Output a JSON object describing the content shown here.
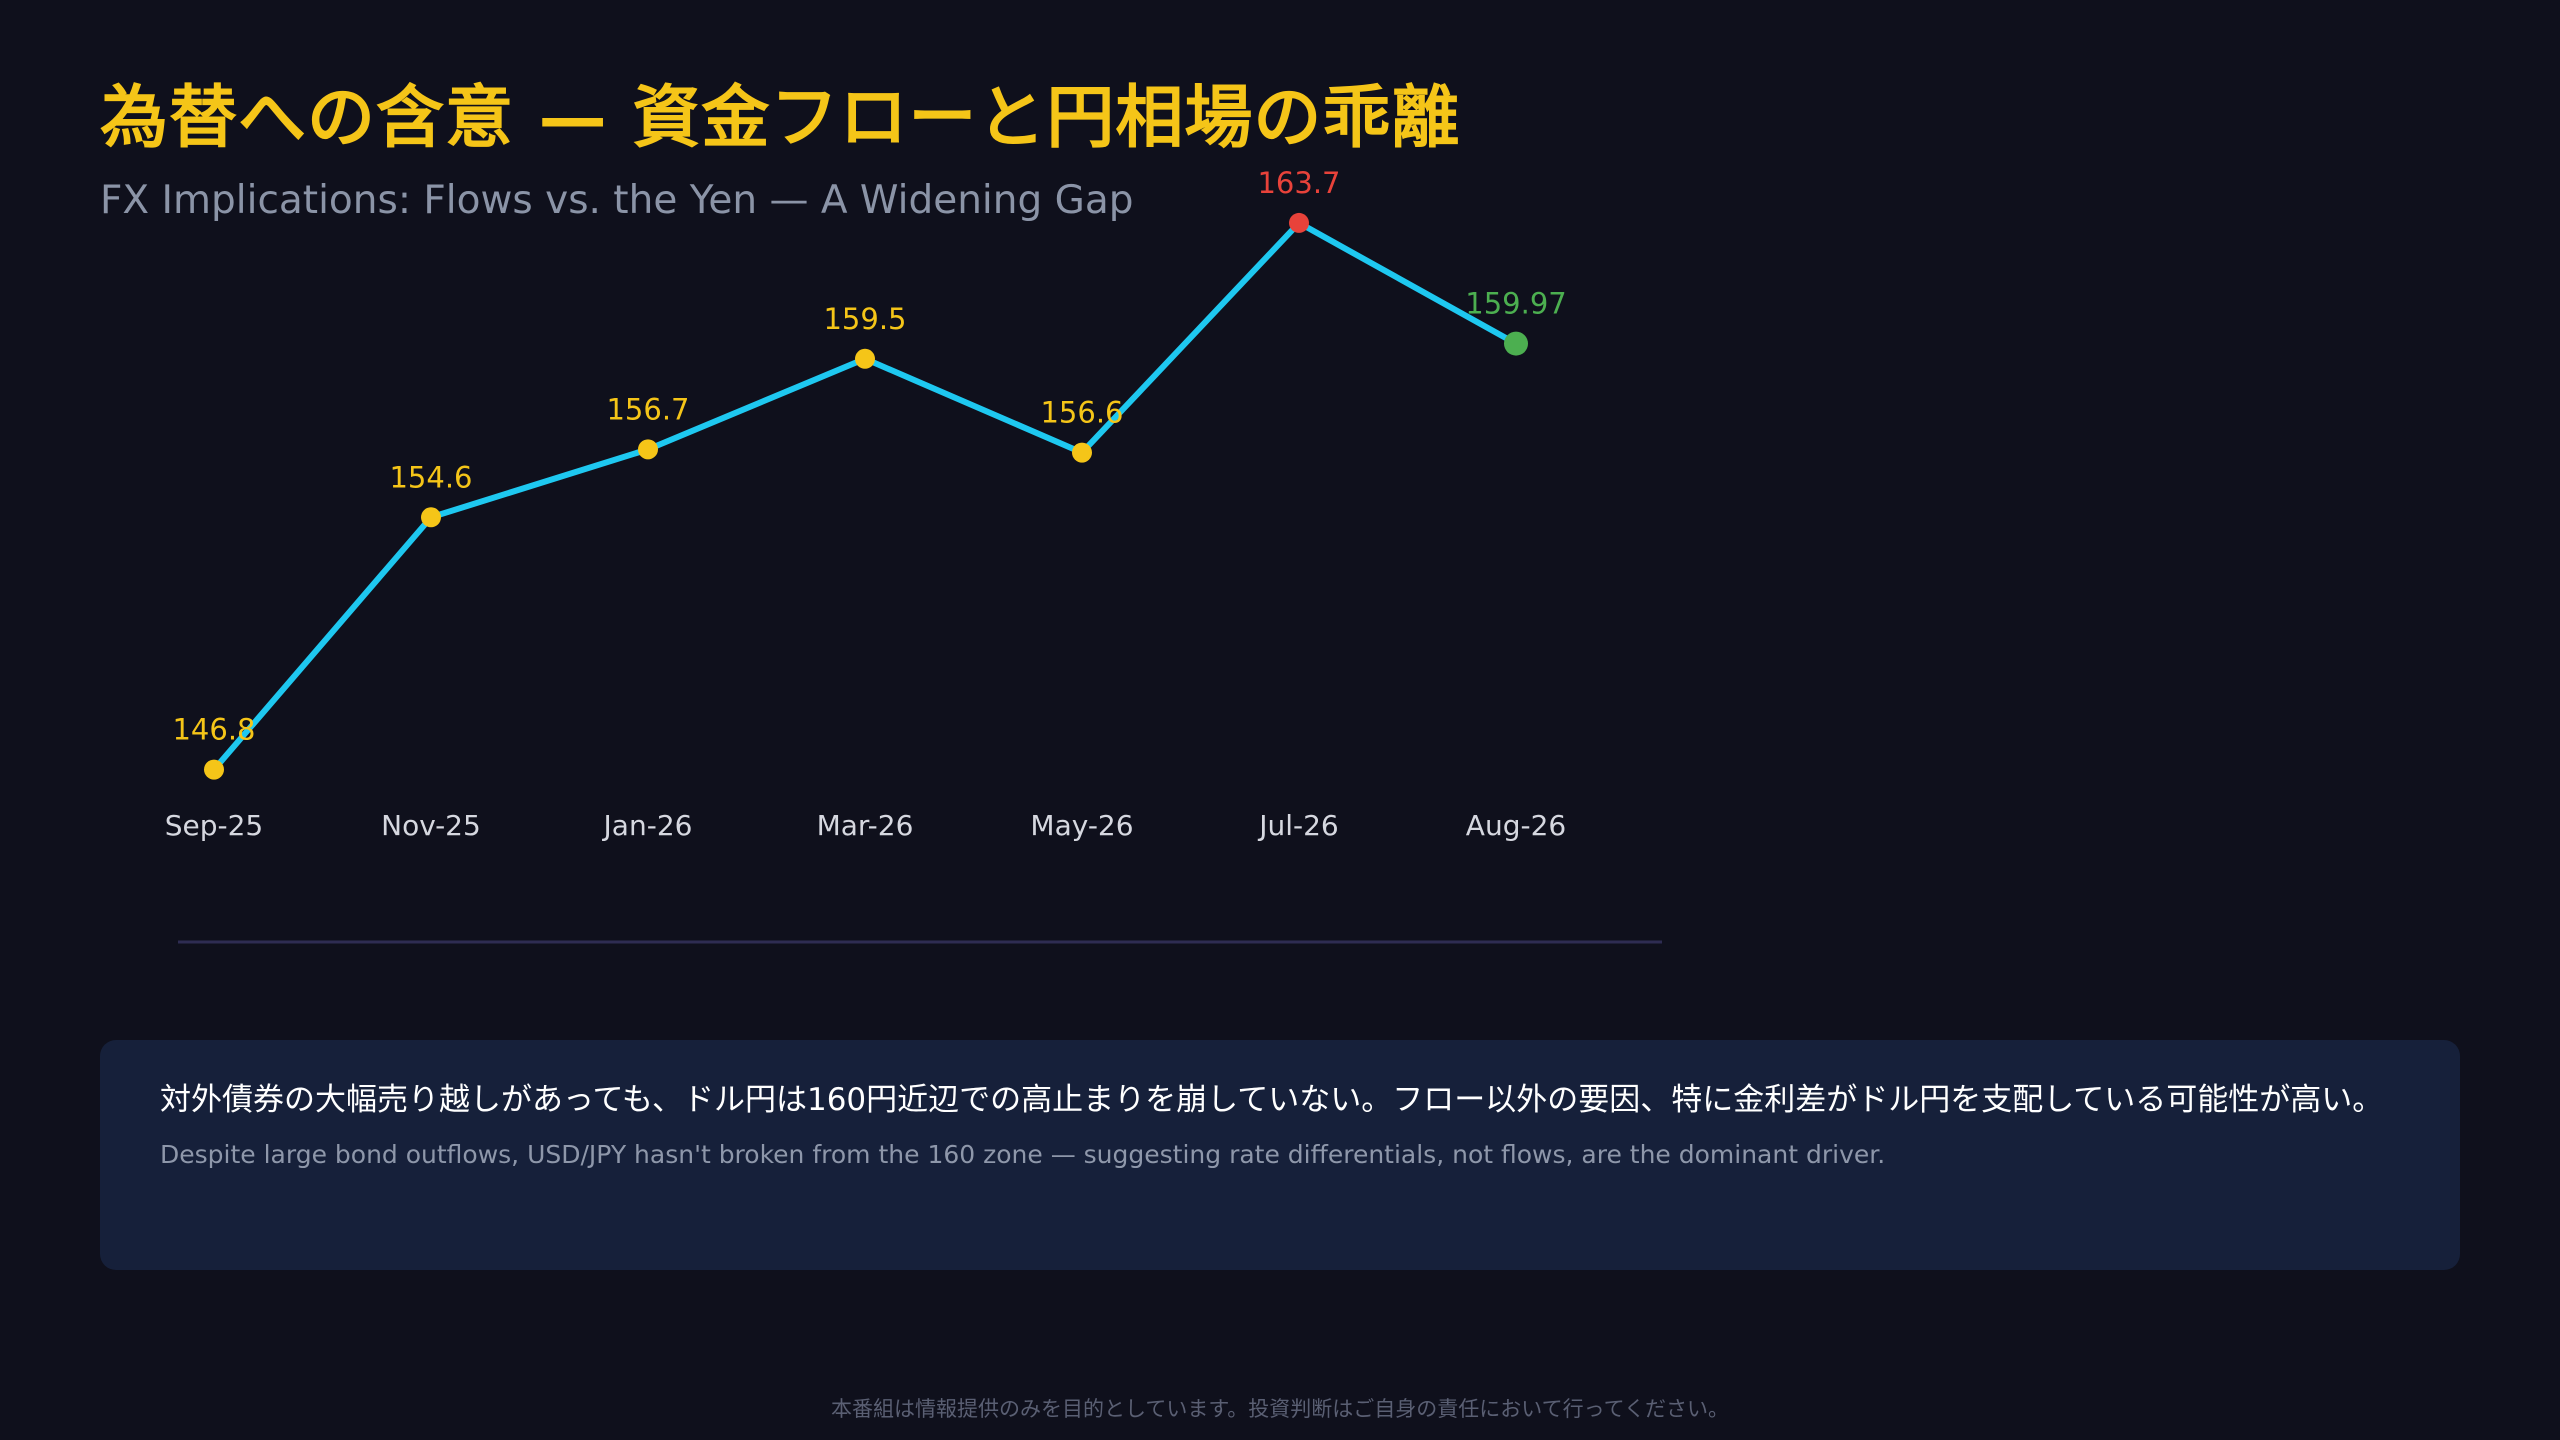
{
  "header": {
    "title": "為替への含意 — 資金フローと円相場の乖離",
    "subtitle": "FX Implications: Flows vs. the Yen — A Widening Gap"
  },
  "chart_data": {
    "type": "line",
    "categories": [
      "Sep-25",
      "Nov-25",
      "Jan-26",
      "Mar-26",
      "May-26",
      "Jul-26",
      "Aug-26"
    ],
    "values": [
      146.8,
      154.6,
      156.7,
      159.5,
      156.6,
      163.7,
      159.97
    ],
    "data_labels": [
      "146.8",
      "154.6",
      "156.7",
      "159.5",
      "156.6",
      "163.7",
      "159.97"
    ],
    "point_colors": [
      "#f5c518",
      "#f5c518",
      "#f5c518",
      "#f5c518",
      "#f5c518",
      "#e8423a",
      "#4caf50"
    ],
    "line_color": "#1ec8f0",
    "ylim": [
      144.5,
      165.8
    ],
    "grid": false
  },
  "note": {
    "ja": "対外債券の大幅売り越しがあっても、ドル円は160円近辺での高止まりを崩していない。フロー以外の要因、特に金利差がドル円を支配している可能性が高い。",
    "en": "Despite large bond outflows, USD/JPY hasn't broken from the 160 zone — suggesting rate differentials, not flows, are the dominant driver."
  },
  "footer": {
    "disclaimer": "本番組は情報提供のみを目的としています。投資判断はご自身の責任において行ってください。"
  },
  "colors": {
    "background": "#0f101c",
    "title": "#f5c518",
    "panel": "#16203a",
    "axis_line": "#2e2c52"
  }
}
